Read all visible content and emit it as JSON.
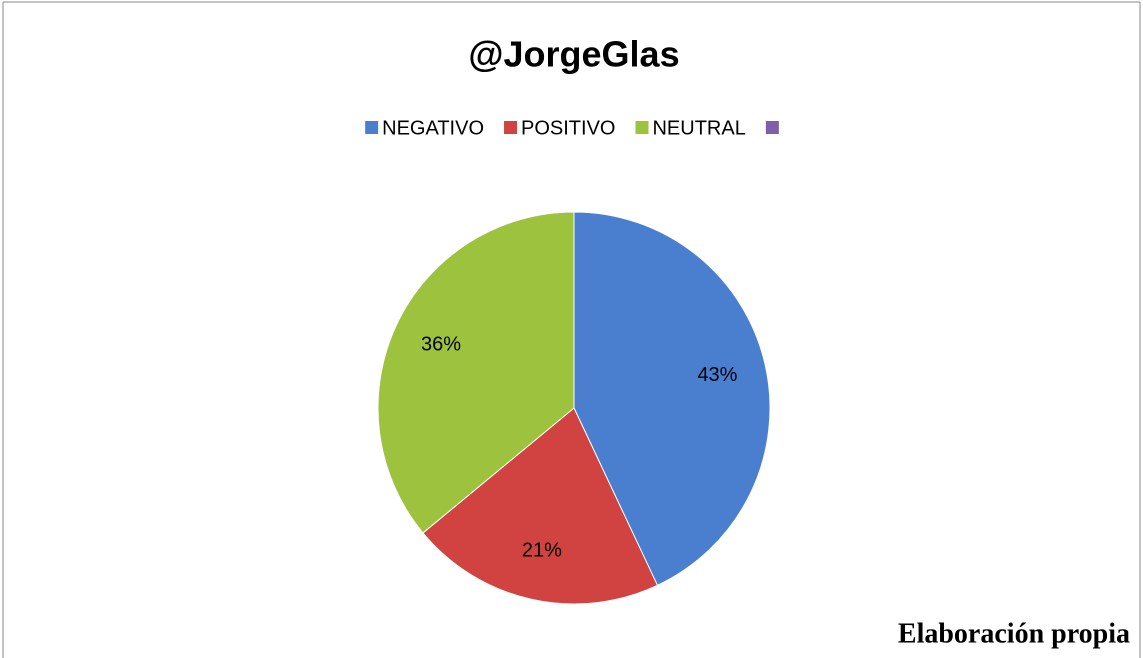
{
  "chart_data": {
    "type": "pie",
    "title": "@JorgeGlas",
    "categories": [
      "NEGATIVO",
      "POSITIVO",
      "NEUTRAL",
      null
    ],
    "values": [
      43,
      21,
      36,
      0
    ],
    "value_labels": [
      "43%",
      "21%",
      "36%",
      null
    ],
    "colors": [
      "#4a7fd0",
      "#d04340",
      "#9dc23e",
      "#7f5fa8"
    ],
    "legend": "top",
    "note": "Elaboración propia"
  }
}
